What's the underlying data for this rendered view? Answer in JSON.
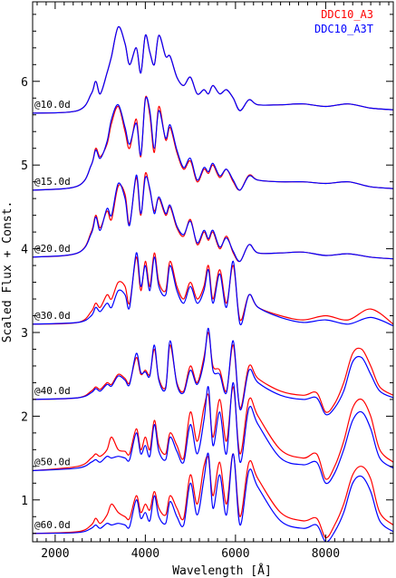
{
  "chart_data": {
    "type": "line",
    "title": "",
    "xlabel": "Wavelength [Å]",
    "ylabel": "Scaled Flux + Const.",
    "xlim": [
      1500,
      9500
    ],
    "ylim": [
      0.5,
      6.95
    ],
    "xticks": [
      2000,
      4000,
      6000,
      8000
    ],
    "yticks": [
      1,
      2,
      3,
      4,
      5,
      6
    ],
    "legend_position": "top-right",
    "grid": false,
    "series": [
      {
        "name": "DDC10_A3",
        "color": "#ff0000"
      },
      {
        "name": "DDC10_A3T",
        "color": "#0000ff"
      }
    ],
    "epochs": [
      {
        "label": "@10.0d",
        "x": [
          1500,
          2500,
          2800,
          2900,
          3000,
          3150,
          3250,
          3400,
          3550,
          3650,
          3800,
          3900,
          4000,
          4100,
          4200,
          4300,
          4450,
          4550,
          4700,
          4850,
          5000,
          5150,
          5300,
          5400,
          5500,
          5650,
          5800,
          5950,
          6100,
          6300,
          6500,
          7000,
          7500,
          8000,
          8500,
          9000,
          9500
        ],
        "red": [
          5.62,
          5.65,
          5.85,
          6.0,
          5.85,
          6.1,
          6.3,
          6.65,
          6.45,
          6.2,
          6.4,
          6.1,
          6.55,
          6.35,
          6.2,
          6.55,
          6.3,
          6.3,
          6.05,
          5.95,
          6.05,
          5.85,
          5.9,
          5.85,
          5.95,
          5.85,
          5.9,
          5.8,
          5.65,
          5.78,
          5.72,
          5.72,
          5.73,
          5.7,
          5.73,
          5.68,
          5.66
        ],
        "blue": [
          5.62,
          5.65,
          5.85,
          6.0,
          5.85,
          6.1,
          6.3,
          6.65,
          6.45,
          6.2,
          6.4,
          6.1,
          6.55,
          6.35,
          6.2,
          6.55,
          6.3,
          6.3,
          6.05,
          5.95,
          6.05,
          5.85,
          5.9,
          5.85,
          5.95,
          5.85,
          5.9,
          5.8,
          5.65,
          5.78,
          5.72,
          5.72,
          5.73,
          5.7,
          5.73,
          5.68,
          5.66
        ]
      },
      {
        "label": "@15.0d",
        "x": [
          1500,
          2500,
          2800,
          2900,
          3000,
          3150,
          3250,
          3400,
          3550,
          3650,
          3800,
          3900,
          4000,
          4100,
          4200,
          4300,
          4450,
          4550,
          4700,
          4850,
          5000,
          5150,
          5300,
          5400,
          5500,
          5650,
          5800,
          5950,
          6100,
          6300,
          6500,
          7000,
          7500,
          8000,
          8500,
          9000,
          9500
        ],
        "red": [
          4.7,
          4.75,
          5.0,
          5.2,
          5.1,
          5.25,
          5.5,
          5.7,
          5.4,
          5.2,
          5.55,
          5.1,
          5.8,
          5.6,
          5.15,
          5.7,
          5.3,
          5.45,
          5.15,
          4.95,
          5.05,
          4.8,
          4.95,
          4.9,
          5.0,
          4.85,
          4.95,
          4.8,
          4.7,
          4.88,
          4.82,
          4.8,
          4.8,
          4.78,
          4.8,
          4.74,
          4.72
        ],
        "blue": [
          4.7,
          4.75,
          5.0,
          5.18,
          5.08,
          5.28,
          5.55,
          5.72,
          5.45,
          5.25,
          5.5,
          5.12,
          5.78,
          5.65,
          5.2,
          5.65,
          5.32,
          5.48,
          5.18,
          4.97,
          5.08,
          4.82,
          4.97,
          4.92,
          5.02,
          4.87,
          4.95,
          4.82,
          4.7,
          4.87,
          4.82,
          4.8,
          4.8,
          4.78,
          4.8,
          4.74,
          4.72
        ]
      },
      {
        "label": "@20.0d",
        "x": [
          1500,
          2500,
          2800,
          2900,
          3000,
          3150,
          3250,
          3400,
          3550,
          3650,
          3800,
          3900,
          4000,
          4100,
          4200,
          4300,
          4450,
          4550,
          4700,
          4850,
          5000,
          5150,
          5300,
          5400,
          5500,
          5650,
          5800,
          5950,
          6100,
          6300,
          6500,
          7000,
          7500,
          8000,
          8500,
          9000,
          9500
        ],
        "red": [
          3.9,
          3.95,
          4.2,
          4.4,
          4.25,
          4.45,
          4.35,
          4.75,
          4.65,
          4.3,
          4.85,
          4.4,
          4.9,
          4.7,
          4.45,
          4.6,
          4.4,
          4.5,
          4.25,
          4.15,
          4.35,
          4.05,
          4.2,
          4.1,
          4.2,
          4.0,
          4.15,
          3.95,
          3.85,
          4.05,
          3.95,
          3.95,
          3.96,
          3.92,
          3.94,
          3.9,
          3.88
        ],
        "blue": [
          3.9,
          3.95,
          4.18,
          4.38,
          4.22,
          4.48,
          4.4,
          4.78,
          4.6,
          4.28,
          4.88,
          4.42,
          4.85,
          4.72,
          4.42,
          4.62,
          4.42,
          4.52,
          4.27,
          4.17,
          4.33,
          4.07,
          4.22,
          4.12,
          4.22,
          4.02,
          4.13,
          3.97,
          3.85,
          4.05,
          3.95,
          3.95,
          3.96,
          3.92,
          3.94,
          3.9,
          3.88
        ]
      },
      {
        "label": "@30.0d",
        "x": [
          1500,
          2500,
          2800,
          2900,
          3000,
          3150,
          3250,
          3400,
          3550,
          3650,
          3800,
          3900,
          4000,
          4100,
          4200,
          4300,
          4450,
          4550,
          4700,
          4850,
          5000,
          5150,
          5300,
          5400,
          5500,
          5650,
          5800,
          5950,
          6100,
          6300,
          6500,
          7000,
          7500,
          8000,
          8500,
          9000,
          9500
        ],
        "red": [
          3.1,
          3.12,
          3.25,
          3.35,
          3.3,
          3.45,
          3.4,
          3.6,
          3.55,
          3.35,
          3.9,
          3.5,
          3.85,
          3.55,
          3.95,
          3.6,
          3.5,
          3.85,
          3.55,
          3.4,
          3.6,
          3.4,
          3.55,
          3.8,
          3.4,
          3.75,
          3.35,
          3.8,
          3.15,
          3.45,
          3.3,
          3.2,
          3.15,
          3.2,
          3.15,
          3.28,
          3.1
        ],
        "blue": [
          3.1,
          3.12,
          3.2,
          3.3,
          3.25,
          3.35,
          3.3,
          3.5,
          3.45,
          3.3,
          3.95,
          3.55,
          3.8,
          3.5,
          3.9,
          3.55,
          3.45,
          3.8,
          3.5,
          3.35,
          3.55,
          3.35,
          3.5,
          3.75,
          3.35,
          3.7,
          3.3,
          3.85,
          3.1,
          3.45,
          3.3,
          3.18,
          3.12,
          3.15,
          3.1,
          3.18,
          3.08
        ]
      },
      {
        "label": "@40.0d",
        "x": [
          1500,
          2500,
          2800,
          2900,
          3000,
          3150,
          3250,
          3400,
          3550,
          3650,
          3800,
          3900,
          4000,
          4100,
          4200,
          4300,
          4450,
          4550,
          4700,
          4850,
          5000,
          5150,
          5300,
          5400,
          5500,
          5650,
          5800,
          5950,
          6100,
          6300,
          6500,
          7000,
          7500,
          7800,
          8000,
          8200,
          8400,
          8600,
          8800,
          9000,
          9200,
          9500
        ],
        "red": [
          2.2,
          2.22,
          2.3,
          2.35,
          2.32,
          2.4,
          2.38,
          2.5,
          2.45,
          2.4,
          2.7,
          2.5,
          2.55,
          2.5,
          2.8,
          2.45,
          2.35,
          2.85,
          2.4,
          2.3,
          2.6,
          2.4,
          2.7,
          3.0,
          2.6,
          2.55,
          2.3,
          2.85,
          2.1,
          2.6,
          2.45,
          2.3,
          2.25,
          2.28,
          2.05,
          2.15,
          2.4,
          2.75,
          2.8,
          2.6,
          2.35,
          2.25
        ],
        "blue": [
          2.2,
          2.22,
          2.28,
          2.33,
          2.3,
          2.38,
          2.36,
          2.48,
          2.43,
          2.38,
          2.75,
          2.52,
          2.53,
          2.48,
          2.85,
          2.43,
          2.33,
          2.9,
          2.38,
          2.28,
          2.55,
          2.38,
          2.65,
          3.05,
          2.55,
          2.5,
          2.28,
          2.9,
          2.08,
          2.55,
          2.4,
          2.25,
          2.2,
          2.22,
          2.02,
          2.1,
          2.3,
          2.65,
          2.7,
          2.5,
          2.3,
          2.22
        ]
      },
      {
        "label": "@50.0d",
        "x": [
          1500,
          2500,
          2800,
          2900,
          3000,
          3150,
          3250,
          3400,
          3550,
          3650,
          3800,
          3900,
          4000,
          4100,
          4200,
          4300,
          4450,
          4550,
          4700,
          4850,
          5000,
          5150,
          5300,
          5400,
          5500,
          5650,
          5800,
          5950,
          6100,
          6300,
          6500,
          7000,
          7500,
          7800,
          8000,
          8200,
          8400,
          8600,
          8800,
          9000,
          9200,
          9500
        ],
        "red": [
          1.35,
          1.4,
          1.5,
          1.55,
          1.52,
          1.6,
          1.75,
          1.6,
          1.58,
          1.55,
          1.85,
          1.6,
          1.75,
          1.6,
          1.95,
          1.65,
          1.55,
          1.8,
          1.65,
          1.5,
          2.05,
          1.7,
          2.1,
          2.25,
          1.75,
          2.2,
          1.7,
          2.35,
          1.55,
          2.2,
          2.0,
          1.6,
          1.5,
          1.55,
          1.25,
          1.4,
          1.7,
          2.1,
          2.2,
          2.0,
          1.6,
          1.45
        ],
        "blue": [
          1.35,
          1.38,
          1.45,
          1.48,
          1.45,
          1.52,
          1.5,
          1.52,
          1.5,
          1.48,
          1.8,
          1.55,
          1.65,
          1.52,
          1.9,
          1.58,
          1.48,
          1.75,
          1.58,
          1.45,
          1.9,
          1.55,
          1.95,
          2.35,
          1.65,
          2.05,
          1.55,
          2.4,
          1.45,
          2.1,
          1.9,
          1.5,
          1.42,
          1.45,
          1.2,
          1.32,
          1.6,
          1.95,
          2.05,
          1.85,
          1.5,
          1.38
        ]
      },
      {
        "label": "@60.0d",
        "x": [
          1500,
          2500,
          2800,
          2900,
          3000,
          3150,
          3250,
          3400,
          3550,
          3650,
          3800,
          3900,
          4000,
          4100,
          4200,
          4300,
          4450,
          4550,
          4700,
          4850,
          5000,
          5150,
          5300,
          5400,
          5500,
          5650,
          5800,
          5950,
          6100,
          6300,
          6500,
          7000,
          7500,
          7800,
          8000,
          8200,
          8400,
          8600,
          8800,
          9000,
          9200,
          9500
        ],
        "red": [
          0.6,
          0.62,
          0.7,
          0.78,
          0.72,
          0.82,
          0.95,
          0.85,
          0.8,
          0.78,
          1.05,
          0.85,
          0.95,
          0.88,
          1.1,
          0.9,
          0.82,
          1.05,
          0.9,
          0.78,
          1.3,
          0.95,
          1.4,
          1.5,
          1.05,
          1.45,
          0.95,
          1.55,
          0.8,
          1.45,
          1.25,
          0.85,
          0.75,
          0.78,
          0.55,
          0.7,
          0.95,
          1.3,
          1.4,
          1.25,
          0.85,
          0.7
        ],
        "blue": [
          0.6,
          0.61,
          0.66,
          0.7,
          0.66,
          0.72,
          0.7,
          0.72,
          0.7,
          0.68,
          1.0,
          0.78,
          0.85,
          0.75,
          1.05,
          0.8,
          0.72,
          0.98,
          0.8,
          0.7,
          1.2,
          0.82,
          1.25,
          1.55,
          0.9,
          1.3,
          0.82,
          1.55,
          0.7,
          1.35,
          1.15,
          0.75,
          0.66,
          0.7,
          0.5,
          0.62,
          0.85,
          1.2,
          1.28,
          1.1,
          0.75,
          0.62
        ]
      }
    ]
  }
}
